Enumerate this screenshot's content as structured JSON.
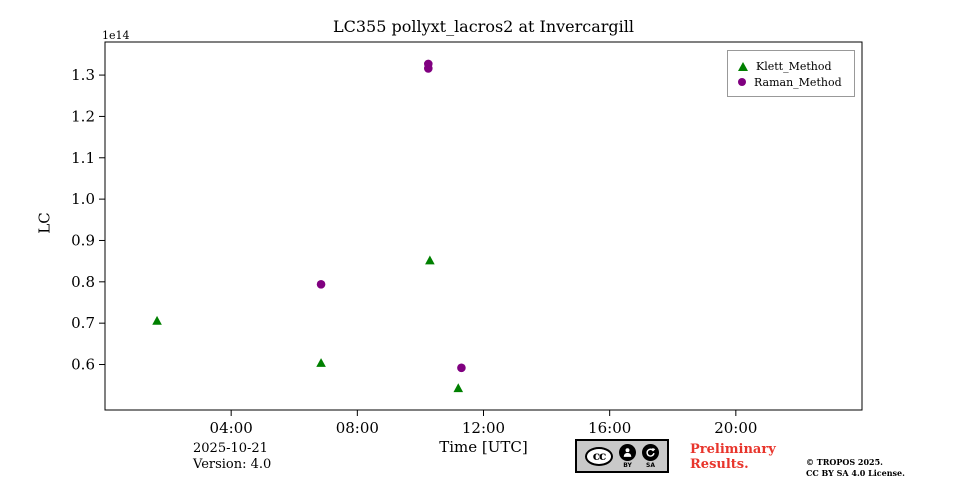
{
  "chart_data": {
    "type": "scatter",
    "title": "LC355 pollyxt_lacros2 at Invercargill",
    "xlabel": "Time [UTC]",
    "ylabel": "LC",
    "y_offset_label": "1e14",
    "x_ticks": [
      "04:00",
      "08:00",
      "12:00",
      "16:00",
      "20:00"
    ],
    "x_tick_hours": [
      4,
      8,
      12,
      16,
      20
    ],
    "xlim_hours": [
      0,
      24
    ],
    "ylim": [
      0.49,
      1.38
    ],
    "y_ticks": [
      0.6,
      0.7,
      0.8,
      0.9,
      1.0,
      1.1,
      1.2,
      1.3
    ],
    "grid": false,
    "legend_position": "top-right",
    "series": [
      {
        "name": "Klett_Method",
        "marker": "triangle",
        "color": "#008000",
        "points": [
          {
            "x": 1.65,
            "y": 0.705
          },
          {
            "x": 6.85,
            "y": 0.603
          },
          {
            "x": 10.3,
            "y": 0.851
          },
          {
            "x": 11.2,
            "y": 0.542
          }
        ]
      },
      {
        "name": "Raman_Method",
        "marker": "circle",
        "color": "#800080",
        "points": [
          {
            "x": 6.85,
            "y": 0.794
          },
          {
            "x": 10.25,
            "y": 1.327
          },
          {
            "x": 10.25,
            "y": 1.316
          },
          {
            "x": 11.3,
            "y": 0.592
          }
        ]
      }
    ]
  },
  "footer": {
    "date": "2025-10-21",
    "version": "Version: 4.0",
    "preliminary_line1": "Preliminary",
    "preliminary_line2": "Results.",
    "copyright_line1": "© TROPOS 2025.",
    "copyright_line2": "CC BY SA 4.0 License.",
    "badge": {
      "logo": "cc",
      "by": "BY",
      "sa": "SA"
    }
  },
  "colors": {
    "klett": "#008000",
    "raman": "#800080",
    "preliminary": "#e8352c",
    "frame": "#000000"
  }
}
